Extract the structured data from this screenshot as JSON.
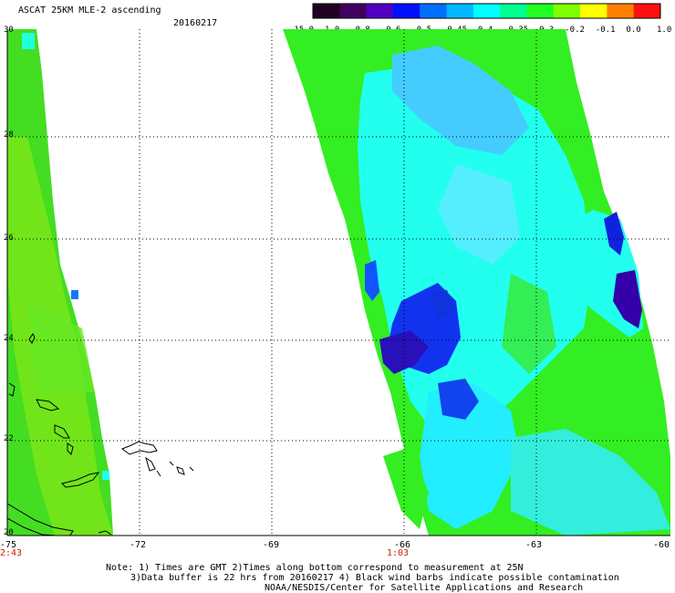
{
  "header": {
    "title": "ASCAT 25KM MLE-2 ascending",
    "date": "20160217"
  },
  "colorbar": {
    "labels": [
      "-15.0",
      "-1.0",
      "-0.8",
      "-0.6",
      "-0.5",
      "-0.45",
      "-0.4",
      "-0.35",
      "-0.3",
      "-0.2",
      "-0.1",
      "0.0",
      "1.0"
    ],
    "colors": [
      "#200020",
      "#400060",
      "#5000c0",
      "#0010ff",
      "#0070ff",
      "#00b8ff",
      "#00ffff",
      "#00ff90",
      "#20ff20",
      "#80ff00",
      "#ffff00",
      "#ff8000",
      "#ff1010"
    ]
  },
  "axes": {
    "lat_labels": [
      "30",
      "28",
      "26",
      "24",
      "22",
      "20"
    ],
    "lon_labels": [
      "-75",
      "-72",
      "-69",
      "-66",
      "-63",
      "-60"
    ],
    "time_labels": [
      "2:43",
      "1:03"
    ]
  },
  "map_colors": {
    "land_outline": "#000000",
    "grid": "#000000",
    "swath_green": "#33ee22",
    "yellow_green": "#99ee11",
    "cyan": "#22ffee",
    "blue": "#1122dd",
    "purple": "#3300aa"
  },
  "notes": {
    "line1": "Note: 1) Times are GMT 2)Times along bottom correspond to measurement at 25N",
    "line2": "3)Data buffer is 22 hrs from 20160217 4) Black wind barbs indicate possible contamination",
    "line3": "NOAA/NESDIS/Center for Satellite Applications and Research"
  }
}
